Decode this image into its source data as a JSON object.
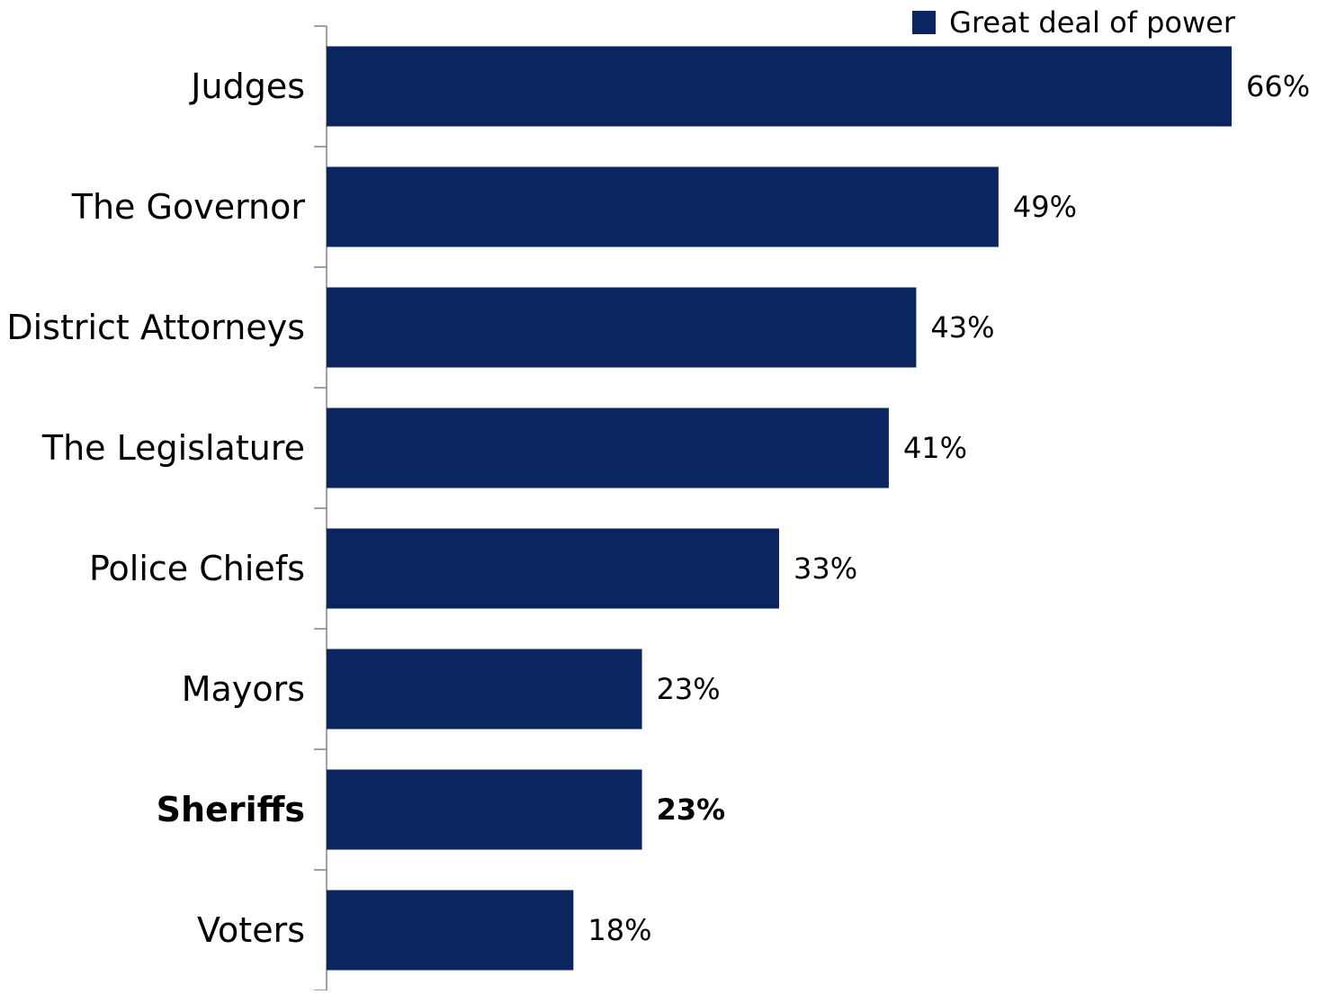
{
  "chart_data": {
    "type": "bar",
    "orientation": "horizontal",
    "categories": [
      "Judges",
      "The Governor",
      "District Attorneys",
      "The Legislature",
      "Police Chiefs",
      "Mayors",
      "Sheriffs",
      "Voters"
    ],
    "series": [
      {
        "name": "Great deal of power",
        "values": [
          66,
          49,
          43,
          41,
          33,
          23,
          23,
          18
        ],
        "color": "#0a2560"
      }
    ],
    "value_labels": [
      "66%",
      "49%",
      "43%",
      "41%",
      "33%",
      "23%",
      "23%",
      "18%"
    ],
    "highlighted_category": "Sheriffs",
    "legend_position": "top-right",
    "grid": false,
    "xlim": [
      0,
      66
    ]
  }
}
